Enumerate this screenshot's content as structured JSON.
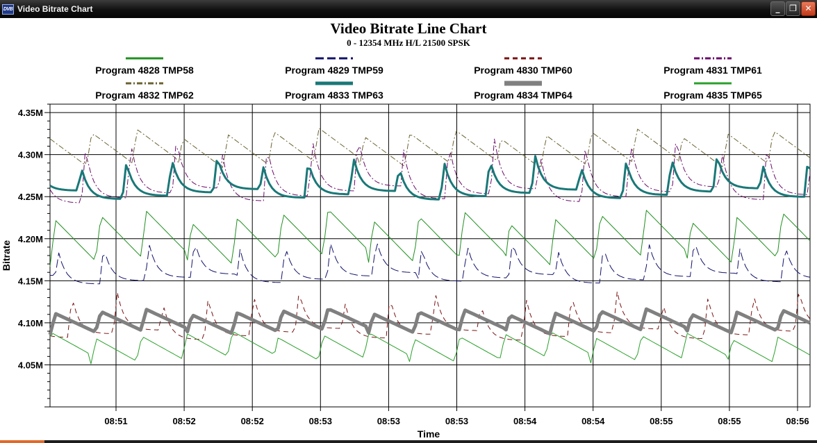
{
  "window": {
    "title": "Video Bitrate Chart",
    "icon": "dvb-app-icon",
    "controls": {
      "minimize": "_",
      "restore": "❐",
      "close": "✕"
    }
  },
  "chart_data": {
    "type": "line",
    "title": "Video Bitrate Line Chart",
    "subtitle": "0 - 12354 MHz H/L 21500 SPSK",
    "xlabel": "Time",
    "ylabel": "Bitrate",
    "ylim": [
      4.0,
      4.36
    ],
    "y_ticks": [
      4.05,
      4.1,
      4.15,
      4.2,
      4.25,
      4.3,
      4.35
    ],
    "y_tick_labels": [
      "4.05M",
      "4.10M",
      "4.15M",
      "4.20M",
      "4.25M",
      "4.30M",
      "4.35M"
    ],
    "x_tick_labels": [
      "08:51",
      "08:52",
      "08:52",
      "08:53",
      "08:53",
      "08:53",
      "08:54",
      "08:54",
      "08:55",
      "08:55",
      "08:56"
    ],
    "grid": true,
    "legend_position": "top",
    "series": [
      {
        "name": "Program 4828 TMP58",
        "color": "#1f8f1f",
        "dash": "solid",
        "width": 1,
        "base": 4.2,
        "amp": 0.055,
        "period": 2,
        "phase": 0.0,
        "decay": "saw"
      },
      {
        "name": "Program 4829 TMP59",
        "color": "#10106a",
        "dash": "longdash",
        "width": 1,
        "base": 4.165,
        "amp": 0.04,
        "period": 2,
        "phase": 0.9,
        "decay": "spike"
      },
      {
        "name": "Program 4830 TMP60",
        "color": "#7a1010",
        "dash": "dashed",
        "width": 1,
        "base": 4.1,
        "amp": 0.045,
        "period": 2,
        "phase": 0.6,
        "decay": "spike"
      },
      {
        "name": "Program 4831 TMP61",
        "color": "#6a0a6a",
        "dash": "dashdot",
        "width": 1,
        "base": 4.27,
        "amp": 0.06,
        "period": 2,
        "phase": 1.3,
        "decay": "spike"
      },
      {
        "name": "Program 4832 TMP62",
        "color": "#6b6230",
        "dash": "dashdot",
        "width": 1,
        "base": 4.305,
        "amp": 0.04,
        "period": 2,
        "phase": 0.2,
        "decay": "saw"
      },
      {
        "name": "Program 4833 TMP63",
        "color": "#1a7878",
        "dash": "solid",
        "width": 3,
        "base": 4.265,
        "amp": 0.04,
        "period": 2,
        "phase": 0.4,
        "decay": "spike"
      },
      {
        "name": "Program 4834 TMP64",
        "color": "#808080",
        "dash": "solid",
        "width": 5,
        "base": 4.1,
        "amp": 0.025,
        "period": 2,
        "phase": 0.0,
        "decay": "saw"
      },
      {
        "name": "Program 4835 TMP65",
        "color": "#2aa02a",
        "dash": "solid",
        "width": 1,
        "base": 4.07,
        "amp": 0.03,
        "period": 2,
        "phase": 0.1,
        "decay": "saw"
      }
    ]
  }
}
